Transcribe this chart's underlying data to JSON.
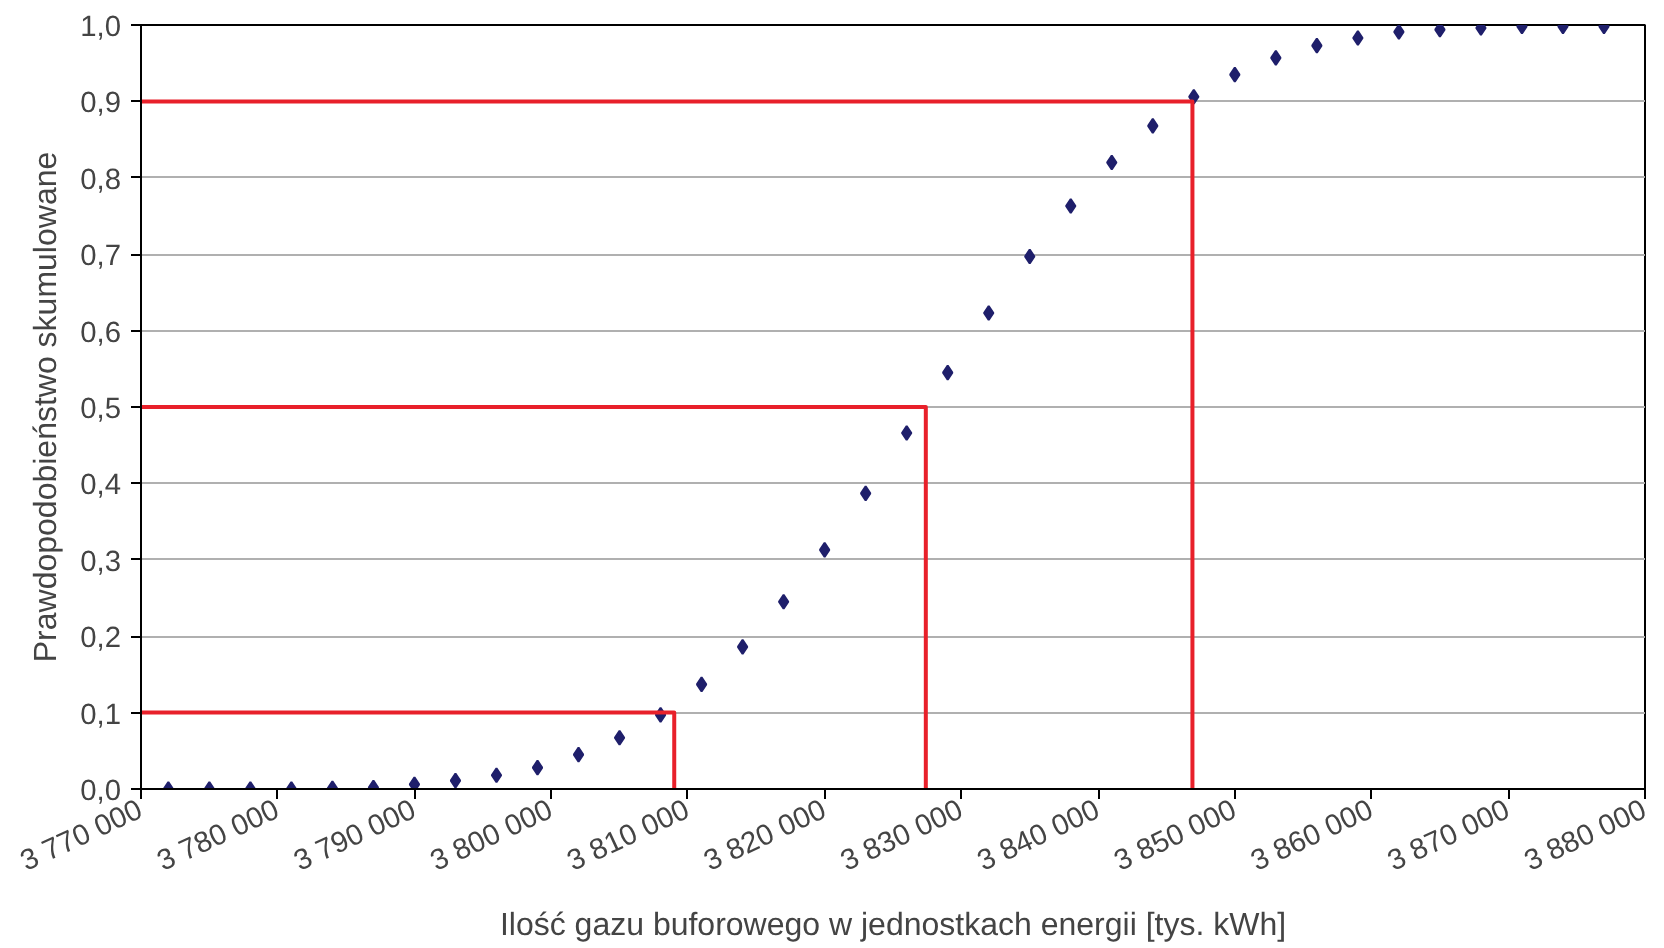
{
  "chart_data": {
    "type": "scatter",
    "xlabel": "Ilość gazu buforowego w jednostkach energii [tys. kWh]",
    "ylabel": "Prawdopodobieństwo skumulowane",
    "xlim": [
      3770000,
      3880000
    ],
    "ylim": [
      0,
      1
    ],
    "xticks": [
      {
        "value": 3770000,
        "label": "3 770 000"
      },
      {
        "value": 3780000,
        "label": "3 780 000"
      },
      {
        "value": 3790000,
        "label": "3 790 000"
      },
      {
        "value": 3800000,
        "label": "3 800 000"
      },
      {
        "value": 3810000,
        "label": "3 810 000"
      },
      {
        "value": 3820000,
        "label": "3 820 000"
      },
      {
        "value": 3830000,
        "label": "3 830 000"
      },
      {
        "value": 3840000,
        "label": "3 840 000"
      },
      {
        "value": 3850000,
        "label": "3 850 000"
      },
      {
        "value": 3860000,
        "label": "3 860 000"
      },
      {
        "value": 3870000,
        "label": "3 870 000"
      },
      {
        "value": 3880000,
        "label": "3 880 000"
      }
    ],
    "yticks": [
      {
        "value": 0,
        "label": "0,0"
      },
      {
        "value": 0.1,
        "label": "0,1"
      },
      {
        "value": 0.2,
        "label": "0,2"
      },
      {
        "value": 0.3,
        "label": "0,3"
      },
      {
        "value": 0.4,
        "label": "0,4"
      },
      {
        "value": 0.5,
        "label": "0,5"
      },
      {
        "value": 0.6,
        "label": "0,6"
      },
      {
        "value": 0.7,
        "label": "0,7"
      },
      {
        "value": 0.8,
        "label": "0,8"
      },
      {
        "value": 0.9,
        "label": "0,9"
      },
      {
        "value": 1,
        "label": "1,0"
      }
    ],
    "grid": "y",
    "series": [
      {
        "marker": "diamond",
        "color": "#1f1f6b",
        "x": [
          3772000,
          3775000,
          3778000,
          3781000,
          3784000,
          3787000,
          3790000,
          3793000,
          3796000,
          3799000,
          3802000,
          3805000,
          3808000,
          3811000,
          3814000,
          3817000,
          3820000,
          3823000,
          3826000,
          3829000,
          3832000,
          3835000,
          3838000,
          3841000,
          3844000,
          3847000,
          3850000,
          3853000,
          3856000,
          3859000,
          3862000,
          3865000,
          3868000,
          3871000,
          3874000,
          3877000
        ],
        "values": [
          0.0,
          0.0,
          0.0,
          0.0,
          0.001,
          0.002,
          0.006,
          0.011,
          0.018,
          0.028,
          0.045,
          0.067,
          0.097,
          0.137,
          0.186,
          0.245,
          0.313,
          0.387,
          0.466,
          0.545,
          0.623,
          0.697,
          0.763,
          0.82,
          0.868,
          0.906,
          0.935,
          0.957,
          0.973,
          0.983,
          0.991,
          0.994,
          0.996,
          0.998,
          0.998,
          0.998
        ]
      },
      {
        "type": "line",
        "marker": "none",
        "color": "#e8202a",
        "x": [
          3770000,
          3809000,
          3809000
        ],
        "values": [
          0.1,
          0.1,
          0
        ]
      },
      {
        "type": "line",
        "marker": "none",
        "color": "#e8202a",
        "x": [
          3770000,
          3827400,
          3827400
        ],
        "values": [
          0.5,
          0.5,
          0
        ]
      },
      {
        "type": "line",
        "marker": "none",
        "color": "#e8202a",
        "x": [
          3770000,
          3846900,
          3846900
        ],
        "values": [
          0.9,
          0.9,
          0
        ]
      }
    ]
  }
}
